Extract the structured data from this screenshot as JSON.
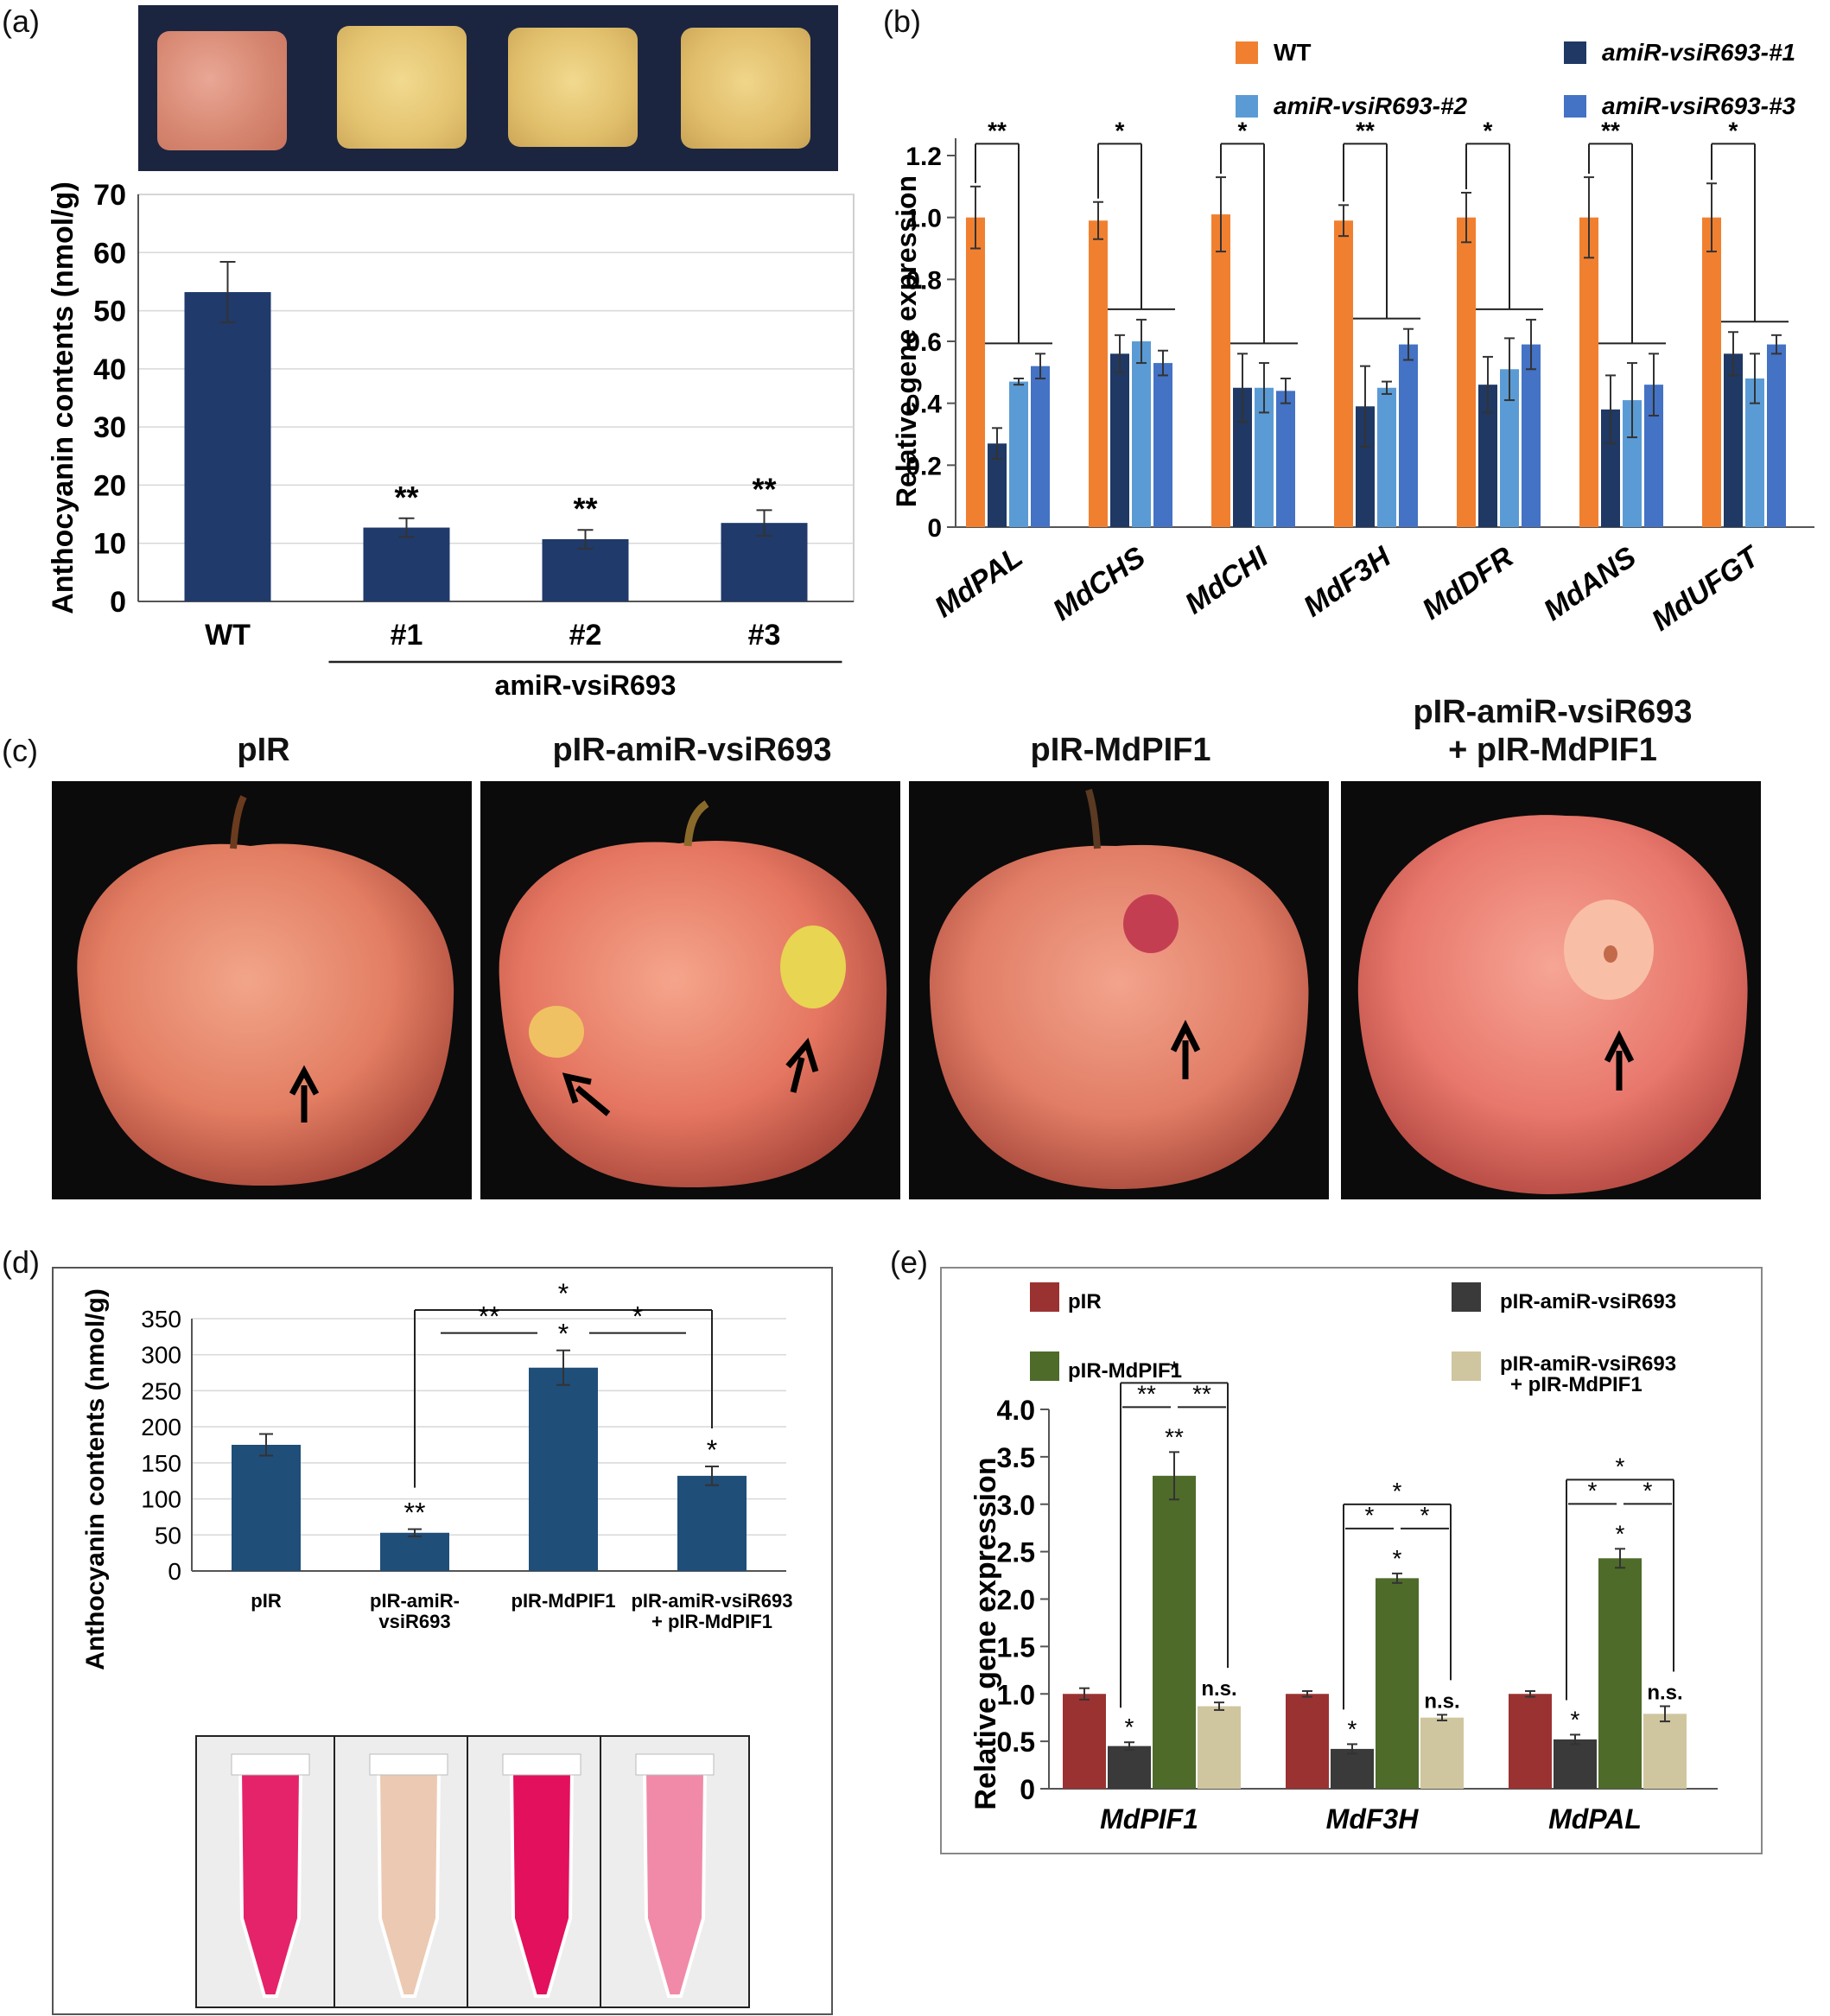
{
  "panel_labels": {
    "a": "(a)",
    "b": "(b)",
    "c": "(c)",
    "d": "(d)",
    "e": "(e)"
  },
  "chart_data": [
    {
      "id": "a",
      "type": "bar",
      "ylabel": "Anthocyanin contents (nmol/g)",
      "ylim": [
        0,
        70
      ],
      "yticks": [
        0,
        10,
        20,
        30,
        40,
        50,
        60,
        70
      ],
      "categories": [
        "WT",
        "#1",
        "#2",
        "#3"
      ],
      "values": [
        53.2,
        12.7,
        10.7,
        13.5
      ],
      "errors": [
        5.2,
        1.6,
        1.6,
        2.2
      ],
      "sig": [
        "",
        "**",
        "**",
        "**"
      ],
      "group_label": "amiR-vsiR693",
      "color": "#1f3a6b",
      "grid": true
    },
    {
      "id": "b",
      "type": "bar",
      "ylabel": "Relative gene expression",
      "ylim": [
        0,
        1.2
      ],
      "yticks": [
        "0",
        "0.2",
        "0.4",
        "0.6",
        "0.8",
        "1.0",
        "1.2"
      ],
      "categories": [
        "MdPAL",
        "MdCHS",
        "MdCHI",
        "MdF3H",
        "MdDFR",
        "MdANS",
        "MdUFGT"
      ],
      "series": [
        {
          "name": "WT",
          "color": "#f08030",
          "values": [
            1.0,
            0.99,
            1.01,
            0.99,
            1.0,
            1.0,
            1.0
          ],
          "errors": [
            0.1,
            0.06,
            0.12,
            0.05,
            0.08,
            0.13,
            0.11
          ]
        },
        {
          "name": "amiR-vsiR693-#1",
          "color": "#1f3864",
          "values": [
            0.27,
            0.56,
            0.45,
            0.39,
            0.46,
            0.38,
            0.56
          ],
          "errors": [
            0.05,
            0.06,
            0.11,
            0.13,
            0.09,
            0.11,
            0.07
          ]
        },
        {
          "name": "amiR-vsiR693-#2",
          "color": "#5b9bd5",
          "values": [
            0.47,
            0.6,
            0.45,
            0.45,
            0.51,
            0.41,
            0.48
          ],
          "errors": [
            0.01,
            0.07,
            0.08,
            0.02,
            0.1,
            0.12,
            0.08
          ]
        },
        {
          "name": "amiR-vsiR693-#3",
          "color": "#4472c4",
          "values": [
            0.52,
            0.53,
            0.44,
            0.59,
            0.59,
            0.46,
            0.59
          ],
          "errors": [
            0.04,
            0.04,
            0.04,
            0.05,
            0.08,
            0.1,
            0.03
          ]
        }
      ],
      "sig": [
        "**",
        "*",
        "*",
        "**",
        "*",
        "**",
        "*"
      ],
      "legend_position": "top"
    },
    {
      "id": "d",
      "type": "bar",
      "ylabel": "Anthocyanin contents (nmol/g)",
      "ylim": [
        0,
        350
      ],
      "yticks": [
        0,
        50,
        100,
        150,
        200,
        250,
        300,
        350
      ],
      "categories": [
        "pIR",
        "pIR-amiR-vsiR693",
        "pIR-MdPIF1",
        "pIR-amiR-vsiR693 + pIR-MdPIF1"
      ],
      "category_lines": [
        [
          "pIR"
        ],
        [
          "pIR-amiR-",
          "vsiR693"
        ],
        [
          "pIR-MdPIF1"
        ],
        [
          "pIR-amiR-vsiR693",
          "+ pIR-MdPIF1"
        ]
      ],
      "values": [
        175,
        53,
        282,
        132
      ],
      "errors": [
        15,
        5,
        24,
        13
      ],
      "sig": [
        "",
        "**",
        "*",
        "*"
      ],
      "brackets": [
        {
          "from": 1,
          "to": 2,
          "label": "**"
        },
        {
          "from": 2,
          "to": 3,
          "label": "*"
        },
        {
          "from": 1,
          "to": 3,
          "label": "*"
        }
      ],
      "color": "#1f4e79",
      "grid": true
    },
    {
      "id": "e",
      "type": "bar",
      "ylabel": "Relative gene expression",
      "ylim": [
        0,
        4.0
      ],
      "yticks": [
        "0",
        "0.5",
        "1.0",
        "1.5",
        "2.0",
        "2.5",
        "3.0",
        "3.5",
        "4.0"
      ],
      "categories": [
        "MdPIF1",
        "MdF3H",
        "MdPAL"
      ],
      "series": [
        {
          "name": "pIR",
          "color": "#9b3232",
          "values": [
            1.0,
            1.0,
            1.0
          ],
          "errors": [
            0.06,
            0.03,
            0.03
          ],
          "sig": [
            "",
            "",
            ""
          ]
        },
        {
          "name": "pIR-amiR-vsiR693",
          "color": "#3a3a3a",
          "values": [
            0.45,
            0.42,
            0.52
          ],
          "errors": [
            0.04,
            0.05,
            0.05
          ],
          "sig": [
            "*",
            "*",
            "*"
          ]
        },
        {
          "name": "pIR-MdPIF1",
          "color": "#4e6b2a",
          "values": [
            3.3,
            2.22,
            2.43
          ],
          "errors": [
            0.25,
            0.05,
            0.1
          ],
          "sig": [
            "**",
            "*",
            "*"
          ]
        },
        {
          "name": "pIR-amiR-vsiR693 + pIR-MdPIF1",
          "color": "#cfc6a0",
          "values": [
            0.87,
            0.75,
            0.79
          ],
          "errors": [
            0.04,
            0.03,
            0.08
          ],
          "sig": [
            "n.s.",
            "n.s.",
            "n.s."
          ]
        }
      ],
      "brackets": [
        {
          "label": "**"
        },
        {
          "label": "**"
        },
        {
          "label": "*"
        }
      ],
      "bracket_labels_by_group": [
        [
          "**",
          "**",
          "*"
        ],
        [
          "*",
          "*",
          "*"
        ],
        [
          "*",
          "*",
          "*"
        ]
      ],
      "legend_position": "top"
    }
  ],
  "panel_c": {
    "titles": [
      "pIR",
      "pIR-amiR-vsiR693",
      "pIR-MdPIF1",
      "pIR-amiR-vsiR693\n+ pIR-MdPIF1"
    ]
  },
  "colors": {
    "dark_bg": "#0c0c0c",
    "callus_bg": "#1a2338",
    "callus_yellow": "#e3c673",
    "callus_red": "#d98b77"
  }
}
